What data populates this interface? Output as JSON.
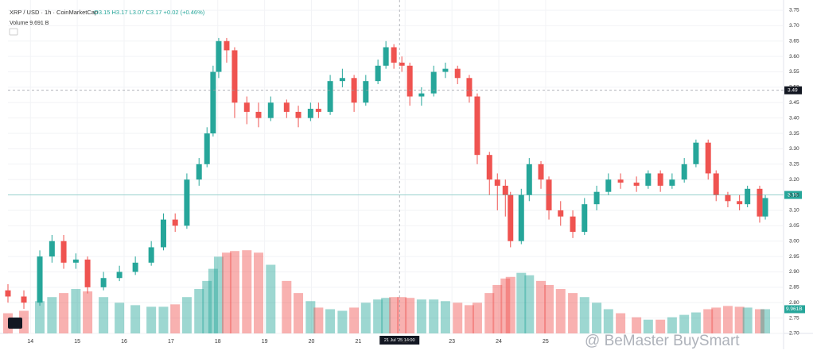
{
  "chart_data": {
    "type": "candlestick",
    "title": "XRP / USD · 1h · CoinMarketCap",
    "ohlc_legend": "O3.15 H3.17 L3.07 C3.17 +0.02 (+0.46%)",
    "volume_legend": "Volume  9.691 B",
    "volume_label": "9.961B",
    "watermark": "@ BeMaster BuySmart",
    "up_color": "#26a69a",
    "down_color": "#ef5350",
    "grid": true,
    "x": [
      13.52,
      13.86,
      14.2,
      14.46,
      14.71,
      14.97,
      15.22,
      15.56,
      15.9,
      16.24,
      16.58,
      16.84,
      17.09,
      17.34,
      17.6,
      17.77,
      17.9,
      18.02,
      18.19,
      18.36,
      18.62,
      18.87,
      19.13,
      19.47,
      19.72,
      19.98,
      20.15,
      20.4,
      20.66,
      20.91,
      21.16,
      21.42,
      21.59,
      21.76,
      21.93,
      22.1,
      22.35,
      22.61,
      22.86,
      23.12,
      23.37,
      23.54,
      23.8,
      23.97,
      24.14,
      24.25,
      24.48,
      24.65,
      24.9,
      25.07,
      25.32,
      25.58,
      25.83,
      26.09,
      26.34,
      26.6,
      26.94,
      27.19,
      27.45,
      27.7,
      27.96,
      28.21,
      28.47,
      28.64,
      28.89,
      29.14,
      29.31,
      29.57,
      29.69
    ],
    "open": [
      2.84,
      2.82,
      2.8,
      2.95,
      3.0,
      2.93,
      2.94,
      2.85,
      2.88,
      2.9,
      2.93,
      2.98,
      3.07,
      3.05,
      3.2,
      3.25,
      3.35,
      3.55,
      3.65,
      3.62,
      3.45,
      3.42,
      3.4,
      3.45,
      3.42,
      3.4,
      3.43,
      3.42,
      3.52,
      3.53,
      3.45,
      3.52,
      3.57,
      3.63,
      3.58,
      3.57,
      3.47,
      3.48,
      3.55,
      3.56,
      3.53,
      3.47,
      3.28,
      3.2,
      3.18,
      3.15,
      3.0,
      3.15,
      3.25,
      3.2,
      3.1,
      3.08,
      3.03,
      3.12,
      3.16,
      3.2,
      3.19,
      3.18,
      3.22,
      3.18,
      3.2,
      3.25,
      3.32,
      3.22,
      3.15,
      3.13,
      3.12,
      3.17,
      3.08
    ],
    "high": [
      2.86,
      2.84,
      2.97,
      3.02,
      3.02,
      2.96,
      2.95,
      2.9,
      2.92,
      2.95,
      3.0,
      3.09,
      3.09,
      3.22,
      3.27,
      3.37,
      3.57,
      3.66,
      3.66,
      3.63,
      3.47,
      3.45,
      3.47,
      3.46,
      3.44,
      3.45,
      3.45,
      3.54,
      3.56,
      3.54,
      3.54,
      3.59,
      3.65,
      3.64,
      3.6,
      3.58,
      3.5,
      3.57,
      3.58,
      3.57,
      3.54,
      3.48,
      3.29,
      3.22,
      3.2,
      3.16,
      3.17,
      3.27,
      3.26,
      3.21,
      3.13,
      3.1,
      3.14,
      3.18,
      3.22,
      3.22,
      3.21,
      3.23,
      3.23,
      3.22,
      3.27,
      3.33,
      3.33,
      3.23,
      3.16,
      3.15,
      3.18,
      3.18,
      3.15
    ],
    "low": [
      2.8,
      2.78,
      2.79,
      2.93,
      2.91,
      2.91,
      2.83,
      2.84,
      2.87,
      2.89,
      2.92,
      2.97,
      3.03,
      3.04,
      3.18,
      3.24,
      3.34,
      3.53,
      3.58,
      3.4,
      3.38,
      3.37,
      3.39,
      3.4,
      3.37,
      3.39,
      3.4,
      3.41,
      3.5,
      3.42,
      3.44,
      3.51,
      3.56,
      3.56,
      3.55,
      3.44,
      3.44,
      3.47,
      3.53,
      3.51,
      3.45,
      3.25,
      3.15,
      3.1,
      3.08,
      2.98,
      2.99,
      3.13,
      3.17,
      3.07,
      3.05,
      3.01,
      3.02,
      3.1,
      3.15,
      3.17,
      3.16,
      3.17,
      3.16,
      3.17,
      3.19,
      3.24,
      3.2,
      3.13,
      3.11,
      3.1,
      3.11,
      3.06,
      3.07
    ],
    "close": [
      2.82,
      2.8,
      2.95,
      3.0,
      2.93,
      2.94,
      2.85,
      2.88,
      2.9,
      2.93,
      2.98,
      3.07,
      3.05,
      3.2,
      3.25,
      3.35,
      3.55,
      3.65,
      3.62,
      3.45,
      3.42,
      3.4,
      3.45,
      3.42,
      3.4,
      3.43,
      3.42,
      3.52,
      3.53,
      3.45,
      3.52,
      3.57,
      3.63,
      3.58,
      3.57,
      3.47,
      3.48,
      3.55,
      3.56,
      3.53,
      3.47,
      3.28,
      3.2,
      3.18,
      3.15,
      3.0,
      3.15,
      3.25,
      3.2,
      3.1,
      3.08,
      3.03,
      3.12,
      3.16,
      3.2,
      3.19,
      3.18,
      3.22,
      3.18,
      3.2,
      3.25,
      3.32,
      3.22,
      3.15,
      3.13,
      3.12,
      3.17,
      3.08,
      3.14
    ],
    "volume": [
      25,
      28,
      40,
      45,
      50,
      55,
      52,
      45,
      38,
      35,
      33,
      33,
      36,
      45,
      55,
      65,
      80,
      95,
      100,
      102,
      103,
      100,
      85,
      65,
      50,
      40,
      32,
      30,
      28,
      32,
      38,
      42,
      44,
      45,
      45,
      44,
      42,
      42,
      40,
      38,
      35,
      38,
      50,
      60,
      68,
      70,
      75,
      72,
      65,
      60,
      55,
      50,
      45,
      38,
      30,
      25,
      20,
      17,
      17,
      20,
      23,
      26,
      30,
      32,
      34,
      33,
      32,
      30,
      30
    ],
    "vlim": [
      0,
      400
    ],
    "xlim": [
      13.52,
      30.08
    ],
    "xticks": [
      14,
      15,
      16,
      17,
      18,
      19,
      20,
      21,
      22,
      23,
      24,
      25
    ],
    "ylim": [
      2.7,
      3.75
    ],
    "yticks": [
      {
        "value": 2.7,
        "label": "2.70"
      },
      2.75,
      {
        "value": 2.8,
        "label": "2.80"
      },
      2.85,
      {
        "value": 2.9,
        "label": "2.90"
      },
      2.95,
      {
        "value": 3.0,
        "label": "3.00"
      },
      3.05,
      {
        "value": 3.1,
        "label": "3.10"
      },
      3.15,
      {
        "value": 3.2,
        "label": "3.20"
      },
      3.25,
      {
        "value": 3.3,
        "label": "3.30"
      },
      3.35,
      {
        "value": 3.4,
        "label": "3.40"
      },
      3.45,
      {
        "value": 3.5,
        "label": "3.50"
      },
      3.55,
      {
        "value": 3.6,
        "label": "3.60"
      },
      3.65,
      {
        "value": 3.7,
        "label": "3.70"
      },
      3.75
    ],
    "current_price": 3.15,
    "crosshair": {
      "x": 21.88,
      "x_label": "21 Jul '25  14:00",
      "y": 3.49
    }
  }
}
